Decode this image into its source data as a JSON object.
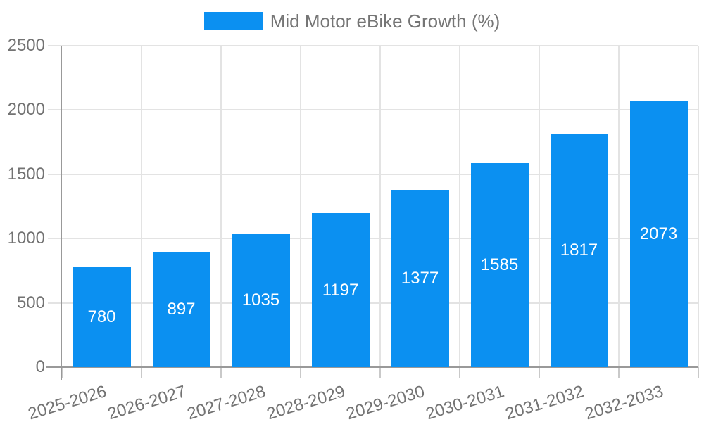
{
  "chart_data": {
    "type": "bar",
    "title": "",
    "legend": {
      "label": "Mid Motor eBike Growth (%)",
      "position": "top"
    },
    "categories": [
      "2025-2026",
      "2026-2027",
      "2027-2028",
      "2028-2029",
      "2029-2030",
      "2030-2031",
      "2031-2032",
      "2032-2033"
    ],
    "series": [
      {
        "name": "Mid Motor eBike Growth (%)",
        "values": [
          780,
          897,
          1035,
          1197,
          1377,
          1585,
          1817,
          2073
        ]
      }
    ],
    "xlabel": "",
    "ylabel": "",
    "ylim": [
      0,
      2500
    ],
    "yticks": [
      0,
      500,
      1000,
      1500,
      2000,
      2500
    ],
    "grid": true,
    "value_labels": "centered-inside-bars"
  },
  "colors": {
    "bar": "#0b90f1",
    "value_label": "#ffffff",
    "grid_line": "#e3e3e3",
    "tick_mark": "#c9c9c9",
    "axis_line": "#999999",
    "tick_text": "#737373",
    "legend_text": "#757575",
    "background": "#ffffff"
  }
}
